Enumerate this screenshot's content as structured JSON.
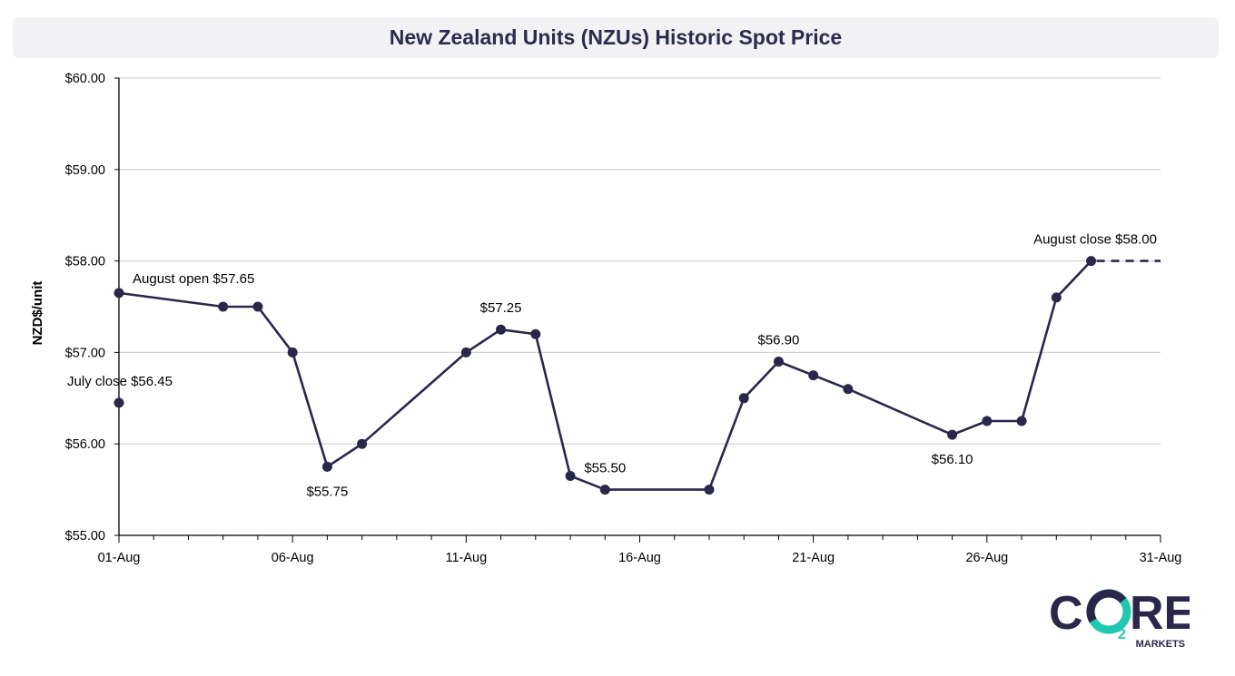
{
  "chart_data": {
    "type": "line",
    "title": "New Zealand Units (NZUs) Historic Spot Price",
    "ylabel": "NZD$/unit",
    "xlabel": "",
    "x_range": [
      1,
      31
    ],
    "ylim": [
      55.0,
      60.0
    ],
    "y_ticks": [
      {
        "value": 55.0,
        "label": "$55.00"
      },
      {
        "value": 56.0,
        "label": "$56.00"
      },
      {
        "value": 57.0,
        "label": "$57.00"
      },
      {
        "value": 58.0,
        "label": "$58.00"
      },
      {
        "value": 59.0,
        "label": "$59.00"
      },
      {
        "value": 60.0,
        "label": "$60.00"
      }
    ],
    "x_ticks": [
      {
        "day": 1,
        "label": "01-Aug"
      },
      {
        "day": 6,
        "label": "06-Aug"
      },
      {
        "day": 11,
        "label": "11-Aug"
      },
      {
        "day": 16,
        "label": "16-Aug"
      },
      {
        "day": 21,
        "label": "21-Aug"
      },
      {
        "day": 26,
        "label": "26-Aug"
      },
      {
        "day": 31,
        "label": "31-Aug"
      }
    ],
    "grid": "horizontal",
    "line_color": "#29284b",
    "series": [
      {
        "values": [
          [
            1,
            57.65
          ],
          [
            4,
            57.5
          ],
          [
            5,
            57.5
          ],
          [
            6,
            57.0
          ],
          [
            7,
            55.75
          ],
          [
            8,
            56.0
          ],
          [
            11,
            57.0
          ],
          [
            12,
            57.25
          ],
          [
            13,
            57.2
          ],
          [
            14,
            55.65
          ],
          [
            15,
            55.5
          ],
          [
            18,
            55.5
          ],
          [
            19,
            56.5
          ],
          [
            20,
            56.9
          ],
          [
            21,
            56.75
          ],
          [
            22,
            56.6
          ],
          [
            25,
            56.1
          ],
          [
            26,
            56.25
          ],
          [
            27,
            56.25
          ],
          [
            28,
            57.6
          ],
          [
            29,
            58.0
          ]
        ]
      }
    ],
    "extra_points": [
      {
        "x": 1,
        "y": 56.45
      }
    ],
    "projection": {
      "style": "dashed",
      "from": [
        29,
        58.0
      ],
      "to": [
        31,
        58.0
      ]
    },
    "annotations": [
      {
        "text": "July close $56.45",
        "x": 1,
        "y": 56.45,
        "pos": "above"
      },
      {
        "text": "August open $57.65",
        "x": 1,
        "y": 57.65,
        "pos": "above-right"
      },
      {
        "text": "$55.75",
        "x": 7,
        "y": 55.75,
        "pos": "below"
      },
      {
        "text": "$57.25",
        "x": 12,
        "y": 57.25,
        "pos": "above"
      },
      {
        "text": "$55.50",
        "x": 15,
        "y": 55.5,
        "pos": "above"
      },
      {
        "text": "$56.90",
        "x": 20,
        "y": 56.9,
        "pos": "above"
      },
      {
        "text": "$56.10",
        "x": 25,
        "y": 56.1,
        "pos": "below"
      },
      {
        "text": "August close $58.00",
        "x": 29,
        "y": 58.0,
        "pos": "above-left"
      }
    ]
  },
  "logo": {
    "text_co": "C",
    "text_o": "O",
    "text_sub": "2",
    "text_re": "RE",
    "tagline": "MARKETS",
    "brand_dark": "#29284b",
    "brand_teal": "#1fc9b0"
  }
}
